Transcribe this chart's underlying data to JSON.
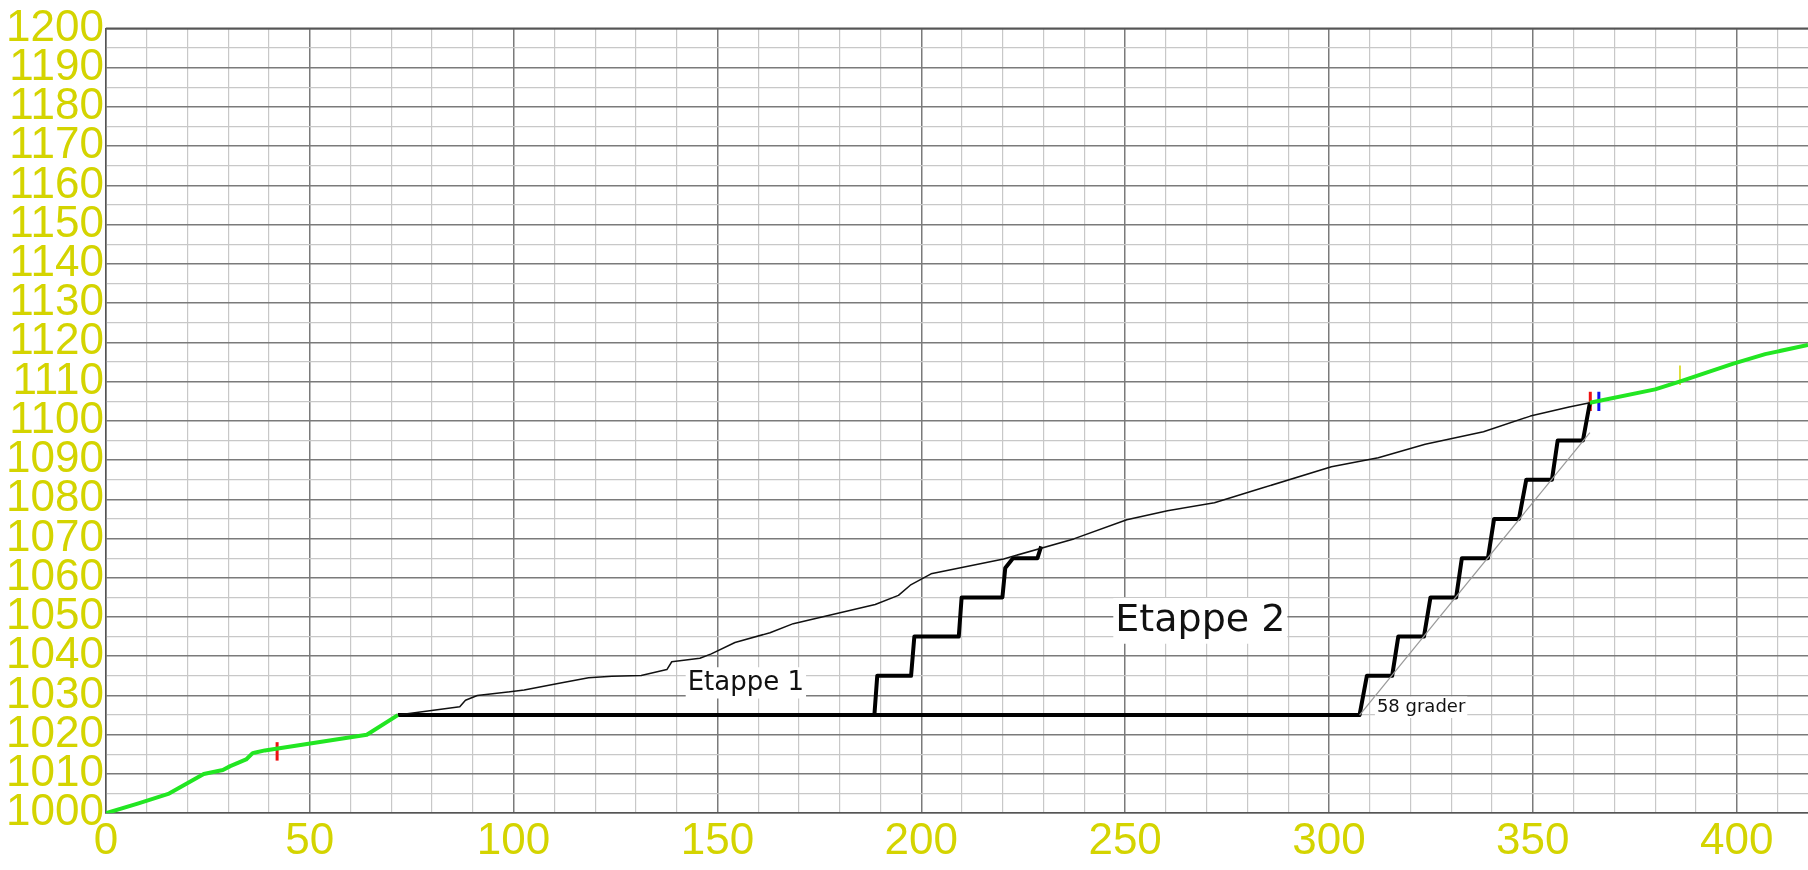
{
  "chart_data": {
    "type": "line",
    "xlim": [
      0,
      417.5
    ],
    "ylim": [
      1000,
      1200
    ],
    "xticks": [
      0,
      {
        "value": 10,
        "label": null
      },
      {
        "value": 20,
        "label": null
      },
      {
        "value": 30,
        "label": null
      },
      {
        "value": 40,
        "label": null
      },
      50,
      {
        "value": 60,
        "label": null
      },
      {
        "value": 70,
        "label": null
      },
      {
        "value": 80,
        "label": null
      },
      {
        "value": 90,
        "label": null
      },
      100,
      {
        "value": 110,
        "label": null
      },
      {
        "value": 120,
        "label": null
      },
      {
        "value": 130,
        "label": null
      },
      {
        "value": 140,
        "label": null
      },
      150,
      {
        "value": 160,
        "label": null
      },
      {
        "value": 170,
        "label": null
      },
      {
        "value": 180,
        "label": null
      },
      {
        "value": 190,
        "label": null
      },
      200,
      {
        "value": 210,
        "label": null
      },
      {
        "value": 220,
        "label": null
      },
      {
        "value": 230,
        "label": null
      },
      {
        "value": 240,
        "label": null
      },
      250,
      {
        "value": 260,
        "label": null
      },
      {
        "value": 270,
        "label": null
      },
      {
        "value": 280,
        "label": null
      },
      {
        "value": 290,
        "label": null
      },
      300,
      {
        "value": 310,
        "label": null
      },
      {
        "value": 320,
        "label": null
      },
      {
        "value": 330,
        "label": null
      },
      {
        "value": 340,
        "label": null
      },
      350,
      {
        "value": 360,
        "label": null
      },
      {
        "value": 370,
        "label": null
      },
      {
        "value": 380,
        "label": null
      },
      {
        "value": 390,
        "label": null
      },
      400,
      {
        "value": 410,
        "label": null
      }
    ],
    "yticks": [
      1000,
      {
        "value": 1005,
        "label": null
      },
      1010,
      {
        "value": 1015,
        "label": null
      },
      1020,
      {
        "value": 1025,
        "label": null
      },
      1030,
      {
        "value": 1035,
        "label": null
      },
      1040,
      {
        "value": 1045,
        "label": null
      },
      1050,
      {
        "value": 1055,
        "label": null
      },
      1060,
      {
        "value": 1065,
        "label": null
      },
      1070,
      {
        "value": 1075,
        "label": null
      },
      1080,
      {
        "value": 1085,
        "label": null
      },
      1090,
      {
        "value": 1095,
        "label": null
      },
      1100,
      {
        "value": 1105,
        "label": null
      },
      1110,
      {
        "value": 1115,
        "label": null
      },
      1120,
      {
        "value": 1125,
        "label": null
      },
      1130,
      {
        "value": 1135,
        "label": null
      },
      1140,
      {
        "value": 1145,
        "label": null
      },
      1150,
      {
        "value": 1155,
        "label": null
      },
      1160,
      {
        "value": 1165,
        "label": null
      },
      1170,
      {
        "value": 1175,
        "label": null
      },
      1180,
      {
        "value": 1185,
        "label": null
      },
      1190,
      {
        "value": 1195,
        "label": null
      },
      1200
    ],
    "grid": true,
    "legend": false,
    "series": [
      {
        "color": "#22e622",
        "x": [
          0,
          8,
          15.5,
          24,
          28.7,
          30.5,
          34.4,
          36,
          39,
          64,
          71.6
        ],
        "values": [
          1000,
          1002.5,
          1005,
          1010,
          1011,
          1012,
          1013.7,
          1015.3,
          1016,
          1020,
          1025
        ]
      },
      {
        "color": "#22e622",
        "x": [
          364,
          380,
          386,
          399,
          407,
          417.5
        ],
        "values": [
          1104.6,
          1108,
          1110,
          1114.5,
          1117,
          1119.3
        ]
      },
      {
        "color": "#111111",
        "x": [
          71.6,
          86.8,
          88.2,
          91.1,
          102.6,
          111.2,
          118.4,
          124.1,
          131.3,
          137.6,
          138.8,
          145.7,
          148.5,
          154.3,
          162.9,
          168.6,
          177.2,
          188.7,
          194.4,
          197.3,
          202.4,
          220.2,
          237.4,
          250.4,
          260.4,
          271.9,
          283.4,
          300.6,
          312.1,
          323.6,
          337.9,
          349.4,
          358.9,
          364
        ],
        "values": [
          1025,
          1027.1,
          1028.8,
          1030,
          1031.4,
          1033.1,
          1034.5,
          1034.9,
          1035.1,
          1036.6,
          1038.6,
          1039.5,
          1040.6,
          1043.5,
          1046,
          1048.3,
          1050.4,
          1053.2,
          1055.5,
          1058.1,
          1061,
          1064.8,
          1069.9,
          1074.8,
          1077.1,
          1079.1,
          1082.8,
          1088.3,
          1090.6,
          1094,
          1097.2,
          1101.2,
          1103.5,
          1104.6
        ]
      },
      {
        "color": "#999999",
        "x": [
          307.5,
          364
        ],
        "values": [
          1025,
          1097
        ]
      },
      {
        "color": "#000000",
        "x": [
          188.5,
          189.2,
          197.5,
          198.3,
          209.2,
          209.9,
          219.9,
          220.6,
          222.5,
          228.5,
          229.4
        ],
        "values": [
          1025,
          1035,
          1035,
          1045,
          1045,
          1055,
          1055,
          1062.5,
          1065,
          1065,
          1068
        ]
      },
      {
        "color": "#000000",
        "x": [
          71.6,
          307.5,
          309.3,
          315.5,
          317,
          323.3,
          324.9,
          331.2,
          332.6,
          339,
          340.5,
          346.6,
          348.4,
          354.7,
          356.1,
          362.3,
          364
        ],
        "values": [
          1025,
          1025,
          1035,
          1035,
          1045,
          1045,
          1055,
          1055,
          1065,
          1065,
          1075,
          1075,
          1085,
          1085,
          1095,
          1095,
          1104.6
        ]
      },
      {
        "color": "#ee1111",
        "x": [
          42,
          42
        ],
        "values": [
          1013.4,
          1018.1
        ]
      },
      {
        "color": "#ee1111",
        "x": [
          364.1,
          364.1
        ],
        "values": [
          1102.5,
          1107.4
        ]
      },
      {
        "color": "#1111ee",
        "x": [
          366.2,
          366.2
        ],
        "values": [
          1102.5,
          1107.4
        ]
      },
      {
        "color": "#d4d400",
        "x": [
          386.1,
          386.1
        ],
        "values": [
          1109.1,
          1114.1
        ]
      }
    ],
    "annotations": [
      "Etappe 1",
      "Etappe 2",
      "58 grader"
    ]
  }
}
